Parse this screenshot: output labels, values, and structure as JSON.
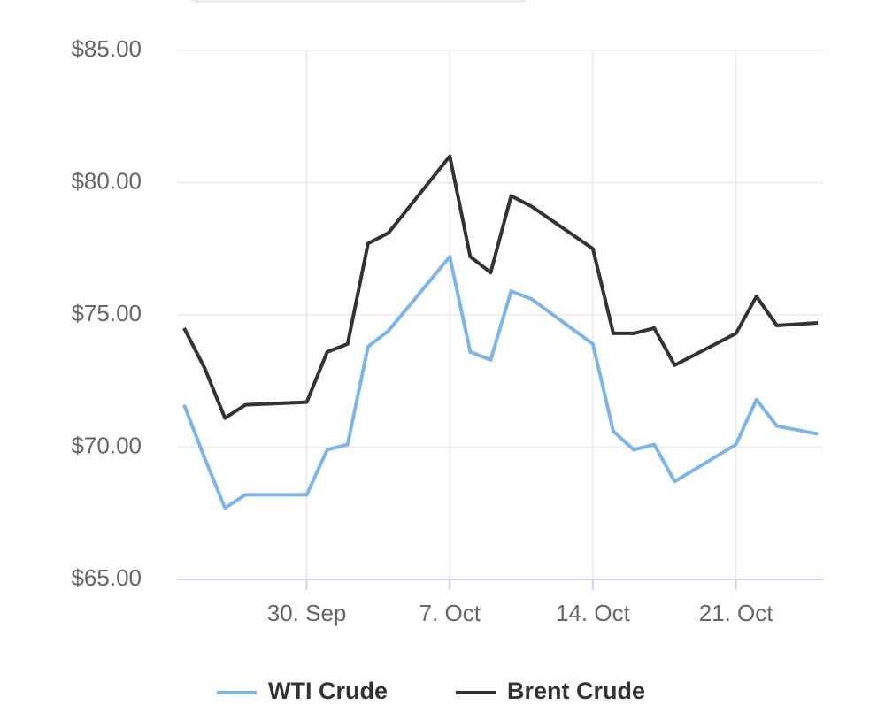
{
  "chart_data": {
    "type": "line",
    "x": [
      "24. Sep",
      "25. Sep",
      "26. Sep",
      "27. Sep",
      "30. Sep",
      "1. Oct",
      "2. Oct",
      "3. Oct",
      "4. Oct",
      "7. Oct",
      "8. Oct",
      "9. Oct",
      "10. Oct",
      "11. Oct",
      "14. Oct",
      "15. Oct",
      "16. Oct",
      "17. Oct",
      "18. Oct",
      "21. Oct",
      "22. Oct",
      "23. Oct",
      "25. Oct"
    ],
    "series": [
      {
        "name": "WTI Crude",
        "color": "#7cb5ec",
        "values": [
          71.6,
          69.6,
          67.7,
          68.2,
          68.2,
          69.9,
          70.1,
          73.8,
          74.4,
          77.2,
          73.6,
          73.3,
          75.9,
          75.6,
          73.9,
          70.6,
          69.9,
          70.1,
          68.7,
          70.1,
          71.8,
          70.8,
          70.5
        ]
      },
      {
        "name": "Brent Crude",
        "color": "#333333",
        "values": [
          74.5,
          73.0,
          71.1,
          71.6,
          71.7,
          73.6,
          73.9,
          77.7,
          78.1,
          81.0,
          77.2,
          76.6,
          79.5,
          79.1,
          77.5,
          74.3,
          74.3,
          74.5,
          73.1,
          74.3,
          75.7,
          74.6,
          74.7
        ]
      }
    ],
    "ylim": [
      65,
      85
    ],
    "yticks": [
      {
        "value": 65,
        "label": "$65.00"
      },
      {
        "value": 70,
        "label": "$70.00"
      },
      {
        "value": 75,
        "label": "$75.00"
      },
      {
        "value": 80,
        "label": "$80.00"
      },
      {
        "value": 85,
        "label": "$85.00"
      }
    ],
    "xlim": [
      "24. Sep",
      "25. Oct"
    ],
    "xticks": [
      "30. Sep",
      "7. Oct",
      "14. Oct",
      "21. Oct"
    ],
    "grid": true
  }
}
